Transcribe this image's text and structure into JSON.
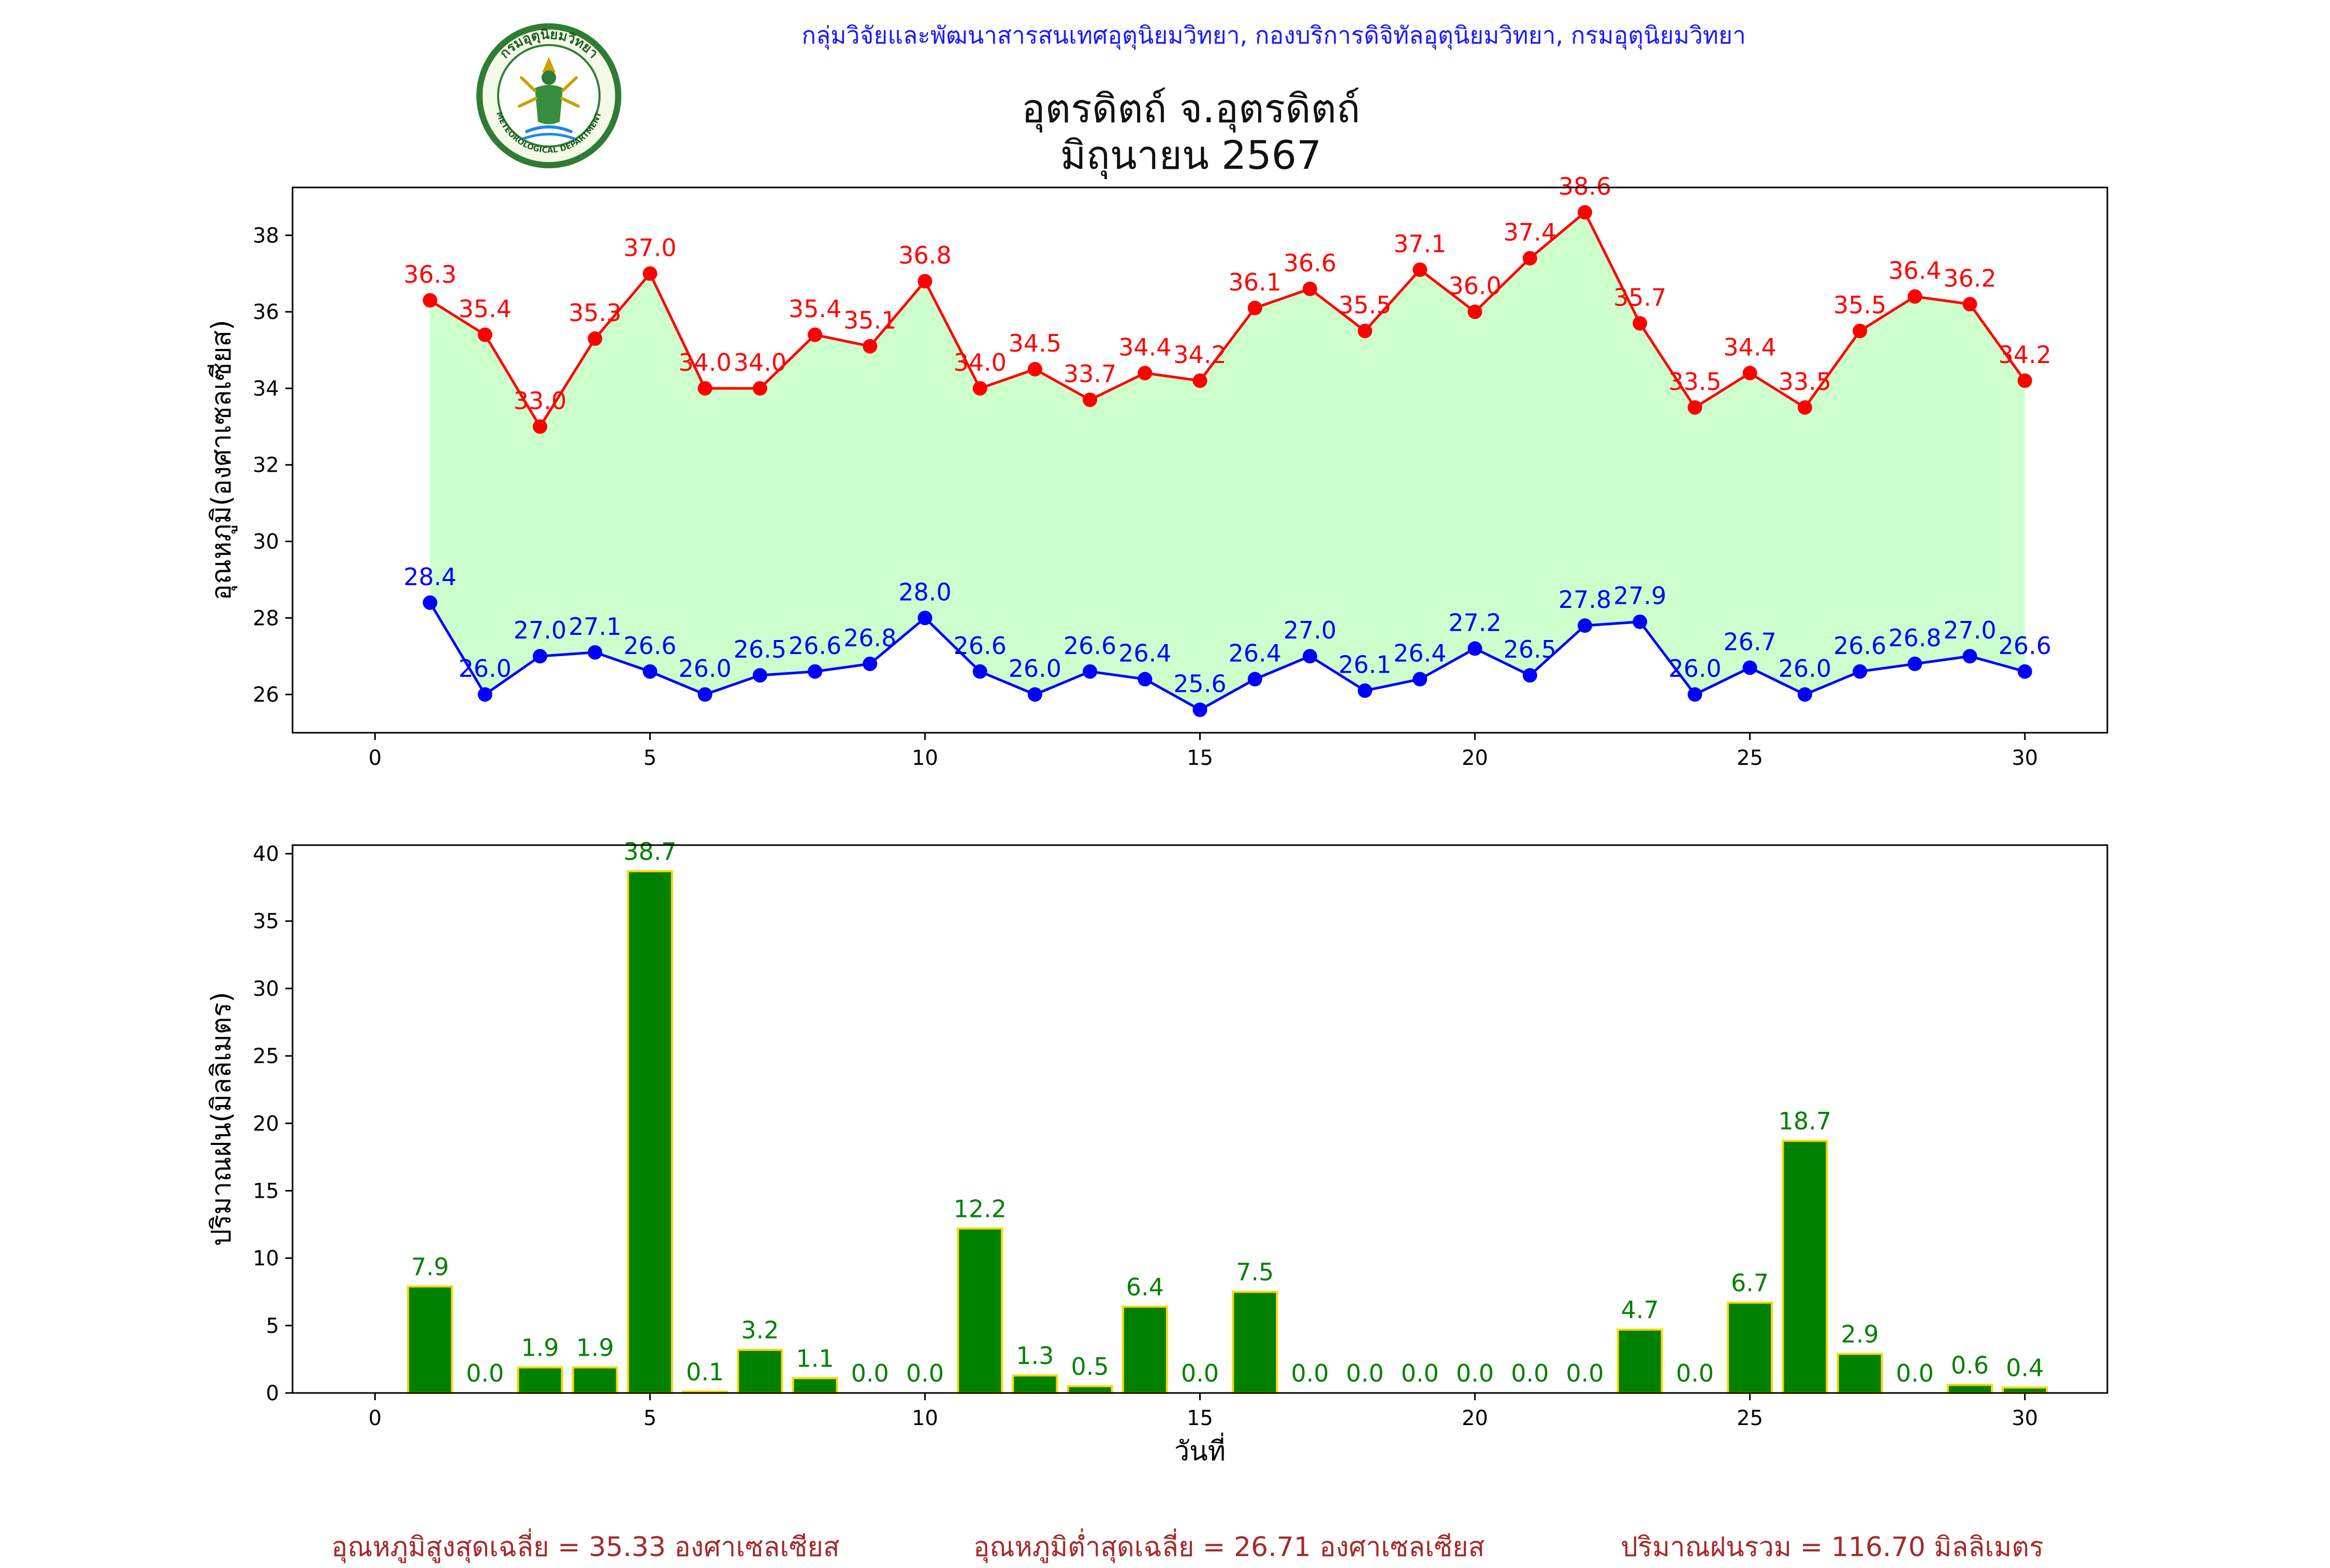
{
  "header": {
    "org_line": "กลุ่มวิจัยและพัฒนาสารสนเทศอุตุนิยมวิทยา, กองบริการดิจิทัลอุตุนิยมวิทยา, กรมอุตุนิยมวิทยา",
    "title_line1": "อุตรดิตถ์ จ.อุตรดิตถ์",
    "title_line2": "มิถุนายน 2567",
    "logo_ring_text": "กรมอุตุนิยมวิทยา",
    "logo_bottom_text": "METEOROLOGICAL DEPARTMENT"
  },
  "colors": {
    "max_line": "#ff0000",
    "min_line": "#0000ff",
    "fill": "#ccffcc",
    "bar_fill": "#008000",
    "bar_edge": "#ffd700",
    "bar_label": "#008000",
    "footer_text": "#a52a2a"
  },
  "chart_data": [
    {
      "type": "line",
      "ylabel": "อุณหภูมิ(องศาเซลเซียส)",
      "xlim": [
        -1.5,
        31.5
      ],
      "ylim": [
        25.0,
        39.25
      ],
      "xticks": [
        0,
        5,
        10,
        15,
        20,
        25,
        30
      ],
      "yticks": [
        26,
        28,
        30,
        32,
        34,
        36,
        38
      ],
      "fill_between": true,
      "x": [
        1,
        2,
        3,
        4,
        5,
        6,
        7,
        8,
        9,
        10,
        11,
        12,
        13,
        14,
        15,
        16,
        17,
        18,
        19,
        20,
        21,
        22,
        23,
        24,
        25,
        26,
        27,
        28,
        29,
        30
      ],
      "series": [
        {
          "key": "max",
          "values": [
            36.3,
            35.4,
            33.0,
            35.3,
            37.0,
            34.0,
            34.0,
            35.4,
            35.1,
            36.8,
            34.0,
            34.5,
            33.7,
            34.4,
            34.2,
            36.1,
            36.6,
            35.5,
            37.1,
            36.0,
            37.4,
            38.6,
            35.7,
            33.5,
            34.4,
            33.5,
            35.5,
            36.4,
            36.2,
            34.2
          ],
          "labels": [
            "36.3",
            "35.4",
            "33.0",
            "35.3",
            "37.0",
            "34.0",
            "34.0",
            "35.4",
            "35.1",
            "36.8",
            "34.0",
            "34.5",
            "33.7",
            "34.4",
            "34.2",
            "36.1",
            "36.6",
            "35.5",
            "37.1",
            "36.0",
            "37.4",
            "38.6",
            "35.7",
            "33.5",
            "34.4",
            "33.5",
            "35.5",
            "36.4",
            "36.2",
            "34.2"
          ]
        },
        {
          "key": "min",
          "values": [
            28.4,
            26.0,
            27.0,
            27.1,
            26.6,
            26.0,
            26.5,
            26.6,
            26.8,
            28.0,
            26.6,
            26.0,
            26.6,
            26.4,
            25.6,
            26.4,
            27.0,
            26.1,
            26.4,
            27.2,
            26.5,
            27.8,
            27.9,
            26.0,
            26.7,
            26.0,
            26.6,
            26.8,
            27.0,
            26.6
          ],
          "labels": [
            "28.4",
            "26.0",
            "27.0",
            "27.1",
            "26.6",
            "26.0",
            "26.5",
            "26.6",
            "26.8",
            "28.0",
            "26.6",
            "26.0",
            "26.6",
            "26.4",
            "25.6",
            "26.4",
            "27.0",
            "26.1",
            "26.4",
            "27.2",
            "26.5",
            "27.8",
            "27.9",
            "26.0",
            "26.7",
            "26.0",
            "26.6",
            "26.8",
            "27.0",
            "26.6"
          ]
        }
      ]
    },
    {
      "type": "bar",
      "xlabel": "วันที่",
      "ylabel": "ปริมาณฝน(มิลลิเมตร)",
      "xlim": [
        -1.5,
        31.5
      ],
      "ylim": [
        0,
        40.635
      ],
      "xticks": [
        0,
        5,
        10,
        15,
        20,
        25,
        30
      ],
      "yticks": [
        0,
        5,
        10,
        15,
        20,
        25,
        30,
        35,
        40
      ],
      "categories": [
        1,
        2,
        3,
        4,
        5,
        6,
        7,
        8,
        9,
        10,
        11,
        12,
        13,
        14,
        15,
        16,
        17,
        18,
        19,
        20,
        21,
        22,
        23,
        24,
        25,
        26,
        27,
        28,
        29,
        30
      ],
      "values": [
        7.9,
        0.0,
        1.9,
        1.9,
        38.7,
        0.1,
        3.2,
        1.1,
        0.0,
        0.0,
        12.2,
        1.3,
        0.5,
        6.4,
        0.0,
        7.5,
        0.0,
        0.0,
        0.0,
        0.0,
        0.0,
        0.0,
        4.7,
        0.0,
        6.7,
        18.7,
        2.9,
        0.0,
        0.6,
        0.4
      ],
      "labels": [
        "7.9",
        "0.0",
        "1.9",
        "1.9",
        "38.7",
        "0.1",
        "3.2",
        "1.1",
        "0.0",
        "0.0",
        "12.2",
        "1.3",
        "0.5",
        "6.4",
        "0.0",
        "7.5",
        "0.0",
        "0.0",
        "0.0",
        "0.0",
        "0.0",
        "0.0",
        "4.7",
        "0.0",
        "6.7",
        "18.7",
        "2.9",
        "0.0",
        "0.6",
        "0.4"
      ]
    }
  ],
  "footer": {
    "avg_max": "อุณหภูมิสูงสุดเฉลี่ย = 35.33 องศาเซลเซียส",
    "avg_min": "อุณหภูมิต่ำสุดเฉลี่ย = 26.71 องศาเซลเซียส",
    "total_rain": "ปริมาณฝนรวม = 116.70 มิลลิเมตร"
  }
}
